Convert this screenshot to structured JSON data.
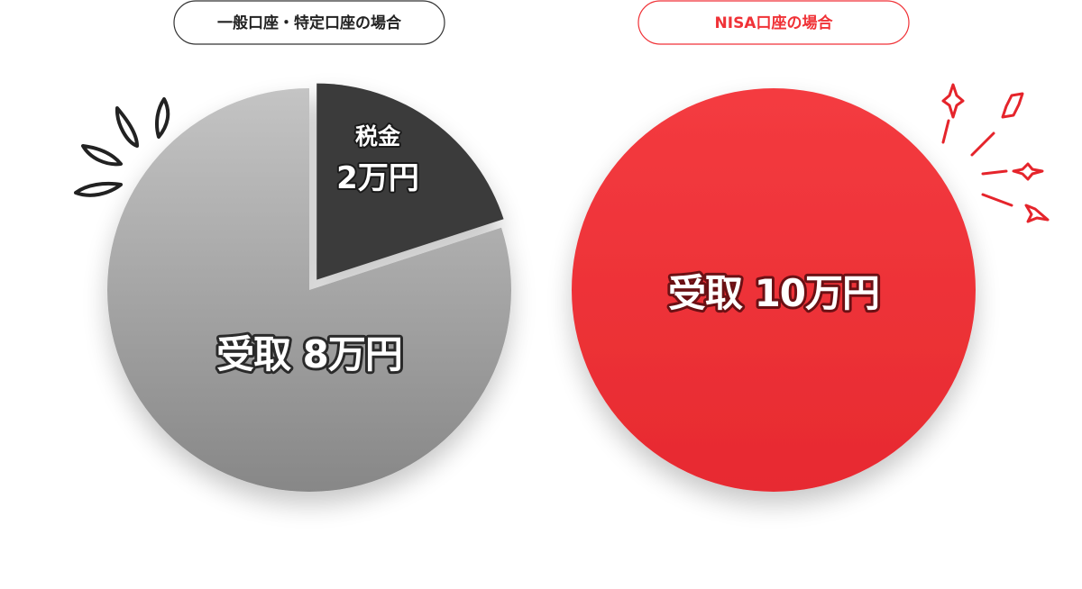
{
  "charts": {
    "left": {
      "title": "一般口座・特定口座の場合",
      "tax_label": "税金",
      "tax_value": "2万円",
      "received_label": "受取 8万円"
    },
    "right": {
      "title": "NISA口座の場合",
      "received_label": "受取 10万円"
    }
  },
  "colors": {
    "accent_red": "#f03237",
    "tax_slice": "#3a3a3a",
    "received_gray": "#a4a4a4",
    "pill_border_gray": "#333333"
  },
  "chart_data": [
    {
      "type": "pie",
      "title": "一般口座・特定口座の場合",
      "slices": [
        {
          "label": "税金",
          "value": 2,
          "unit": "万円"
        },
        {
          "label": "受取",
          "value": 8,
          "unit": "万円"
        }
      ]
    },
    {
      "type": "pie",
      "title": "NISA口座の場合",
      "slices": [
        {
          "label": "受取",
          "value": 10,
          "unit": "万円"
        }
      ]
    }
  ]
}
